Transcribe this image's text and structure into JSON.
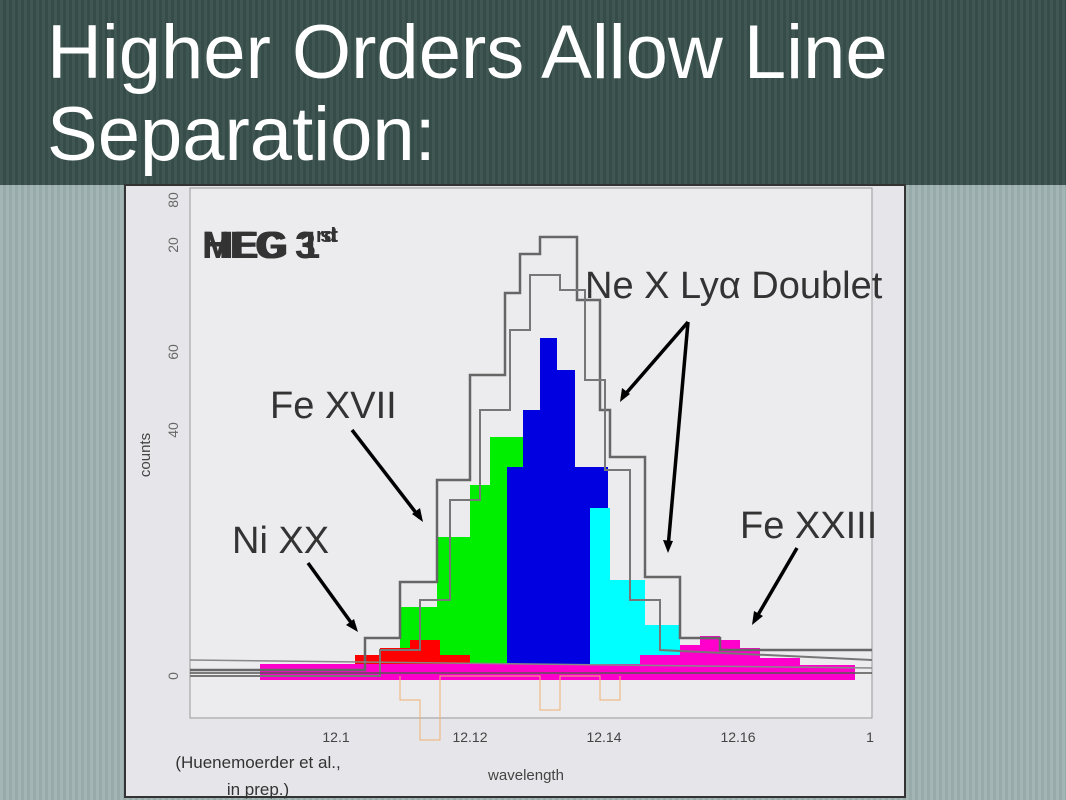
{
  "slide": {
    "title": "Higher Orders Allow Line Separation:",
    "chart": {
      "legend_1": "MEG 1",
      "legend_1_sup": "st",
      "legend_2": "HEG 3",
      "legend_2_sup": "rd",
      "y_label": "counts",
      "x_label": "wavelength",
      "x_tick_labels": [
        "12.1",
        "12.12",
        "12.14",
        "12.16",
        "1"
      ],
      "y_tick_labels": [
        "0",
        "20",
        "40",
        "60",
        "80"
      ]
    },
    "annotations": {
      "ne": "Ne X Lyα Doublet",
      "fe17": "Fe XVII",
      "ni20": "Ni XX",
      "fe23": "Fe XXIII"
    },
    "citation": [
      "(Huenemoerder et al.,",
      "in prep.)"
    ]
  }
}
